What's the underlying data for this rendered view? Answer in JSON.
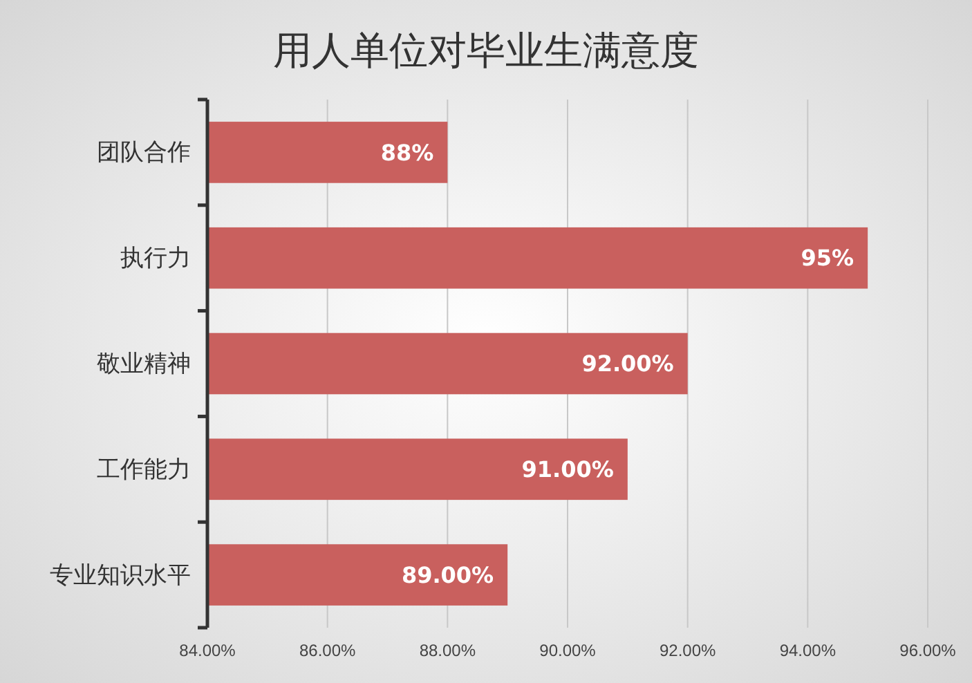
{
  "chart_data": {
    "type": "bar",
    "orientation": "horizontal",
    "title": "用人单位对毕业生满意度",
    "categories": [
      "团队合作",
      "执行力",
      "敬业精神",
      "工作能力",
      "专业知识水平"
    ],
    "values": [
      88,
      95,
      92,
      91,
      89
    ],
    "value_labels": [
      "88%",
      "95%",
      "92.00%",
      "91.00%",
      "89.00%"
    ],
    "color": "#c9605e",
    "xlim": [
      84,
      96
    ],
    "xticks": [
      {
        "value": 84,
        "label": "84.00%"
      },
      {
        "value": 86,
        "label": "86.00%"
      },
      {
        "value": 88,
        "label": "88.00%"
      },
      {
        "value": 90,
        "label": "90.00%"
      },
      {
        "value": 92,
        "label": "92.00%"
      },
      {
        "value": 94,
        "label": "94.00%"
      },
      {
        "value": 96,
        "label": "96.00%"
      }
    ],
    "grid": "x"
  }
}
